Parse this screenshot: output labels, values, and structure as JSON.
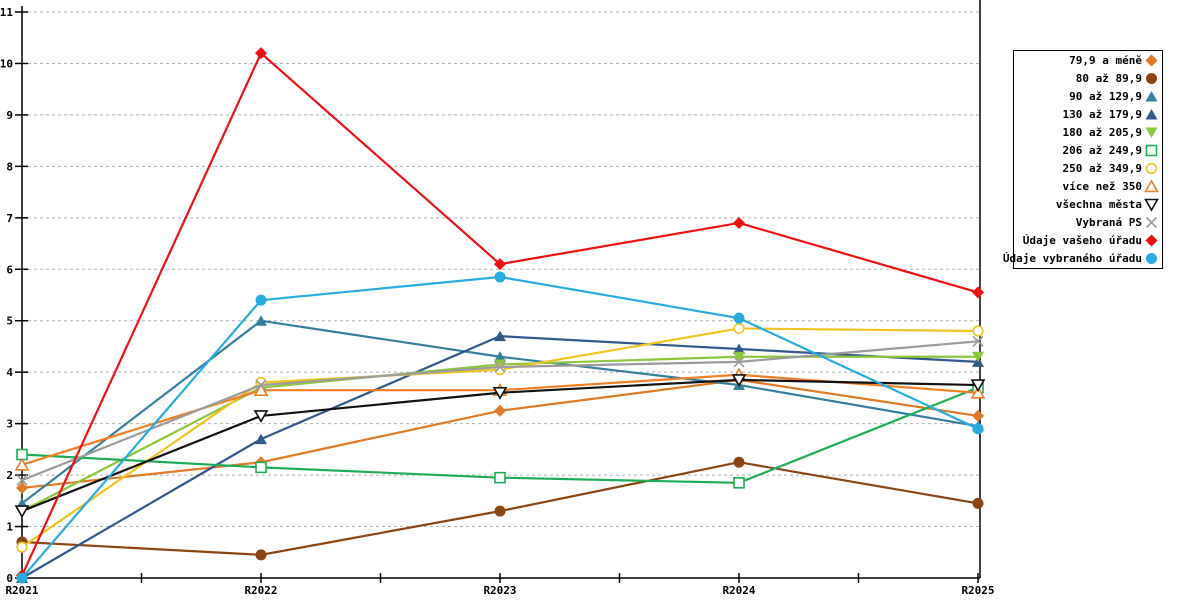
{
  "page": {
    "background": "#ffffff"
  },
  "chart_data": {
    "type": "line",
    "title": "",
    "xlabel": "",
    "ylabel": "",
    "categories": [
      "R2021",
      "R2022",
      "R2023",
      "R2024",
      "R2025"
    ],
    "ylim": [
      0,
      11
    ],
    "yticks": [
      0,
      1,
      2,
      3,
      4,
      5,
      6,
      7,
      8,
      9,
      10,
      11
    ],
    "grid": "horizontal-dashed",
    "grid_color": "#b0b0b0",
    "axis_color": "#000000",
    "legend_position": "right-outside",
    "series": [
      {
        "name": "79,9 a méně",
        "color": "#DF7A28",
        "marker": "diamond",
        "filled": true,
        "values": [
          1.75,
          2.25,
          3.25,
          3.85,
          3.15
        ]
      },
      {
        "name": "80 až 89,9",
        "color": "#8B4513",
        "marker": "circle",
        "filled": true,
        "values": [
          0.7,
          0.45,
          1.3,
          2.25,
          1.45
        ]
      },
      {
        "name": "90 až 129,9",
        "color": "#36809E",
        "marker": "triangle-up",
        "filled": true,
        "values": [
          1.45,
          5.0,
          4.3,
          3.75,
          2.95
        ]
      },
      {
        "name": "130 až 179,9",
        "color": "#31598C",
        "marker": "triangle-up",
        "filled": true,
        "values": [
          0.0,
          2.7,
          4.7,
          4.45,
          4.2
        ]
      },
      {
        "name": "180 až 205,9",
        "color": "#8CC63F",
        "marker": "triangle-down",
        "filled": true,
        "values": [
          1.3,
          3.7,
          4.15,
          4.3,
          4.3
        ]
      },
      {
        "name": "206 až 249,9",
        "color": "#1FAC54",
        "marker": "square",
        "filled": false,
        "values": [
          2.4,
          2.15,
          1.95,
          1.85,
          3.7
        ]
      },
      {
        "name": "250 až 349,9",
        "color": "#F0C41F",
        "marker": "circle",
        "filled": false,
        "values": [
          0.6,
          3.8,
          4.05,
          4.85,
          4.8
        ]
      },
      {
        "name": "více než 350",
        "color": "#F07E26",
        "marker": "triangle-up",
        "filled": false,
        "values": [
          2.2,
          3.65,
          3.65,
          3.95,
          3.6
        ]
      },
      {
        "name": "všechna města",
        "color": "#111111",
        "marker": "triangle-down",
        "filled": false,
        "values": [
          1.3,
          3.15,
          3.6,
          3.85,
          3.75
        ]
      },
      {
        "name": "Vybraná PS",
        "color": "#9B9B9B",
        "marker": "x",
        "filled": false,
        "values": [
          1.9,
          3.75,
          4.1,
          4.2,
          4.6
        ]
      },
      {
        "name": "Údaje vašeho úřadu",
        "color": "#EE1111",
        "marker": "diamond",
        "filled": true,
        "values": [
          0.05,
          10.2,
          6.1,
          6.9,
          5.55
        ]
      },
      {
        "name": "Údaje vybraného úřadu",
        "color": "#29ABE2",
        "marker": "circle",
        "filled": true,
        "values": [
          0.0,
          5.4,
          5.85,
          5.05,
          2.9
        ]
      }
    ]
  }
}
